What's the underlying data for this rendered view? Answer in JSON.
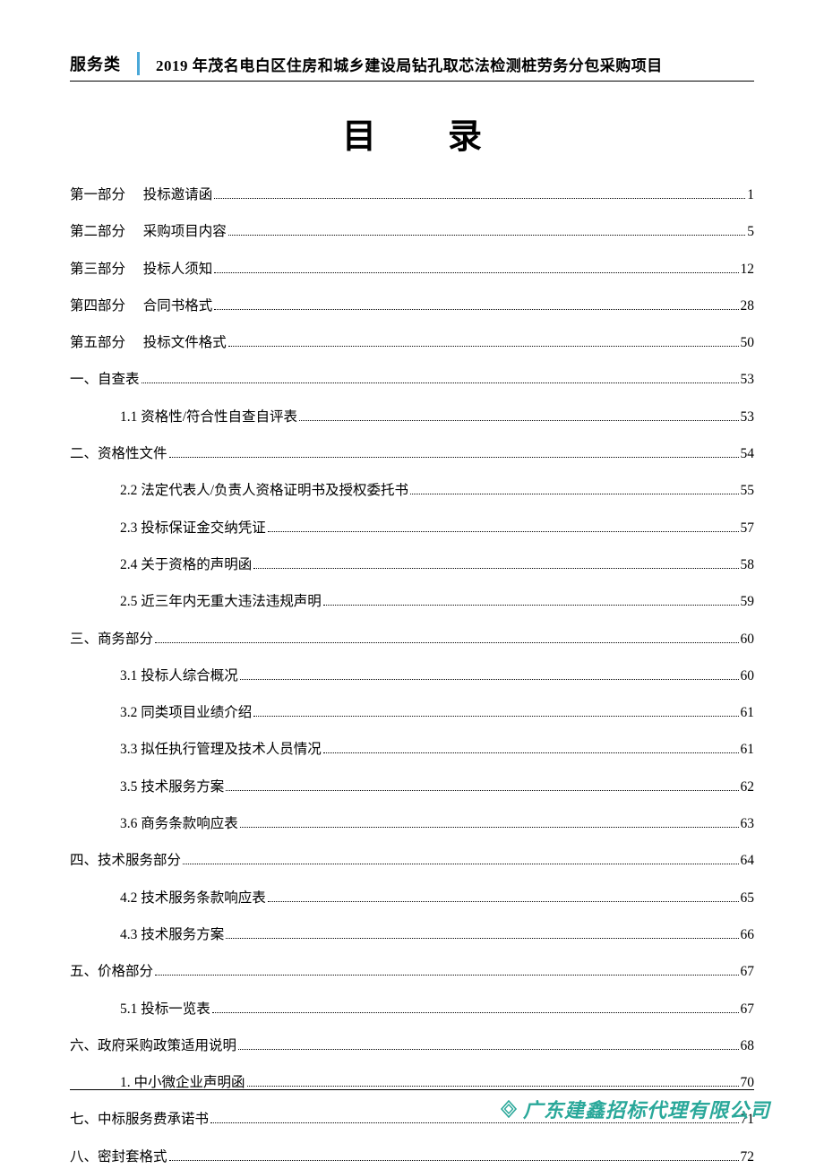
{
  "header": {
    "category": "服务类",
    "project_title": "2019 年茂名电白区住房和城乡建设局钻孔取芯法检测桩劳务分包采购项目"
  },
  "title": "目录",
  "toc": [
    {
      "level": 0,
      "part": "第一部分",
      "label": "投标邀请函",
      "page": "1"
    },
    {
      "level": 0,
      "part": "第二部分",
      "label": "采购项目内容",
      "page": "5"
    },
    {
      "level": 0,
      "part": "第三部分",
      "label": "投标人须知",
      "page": "12"
    },
    {
      "level": 0,
      "part": "第四部分",
      "label": "合同书格式",
      "page": "28"
    },
    {
      "level": 0,
      "part": "第五部分",
      "label": "投标文件格式",
      "page": "50"
    },
    {
      "level": 0,
      "part": "",
      "label": "一、自查表",
      "page": "53"
    },
    {
      "level": 1,
      "part": "",
      "label": "1.1 资格性/符合性自查自评表",
      "page": "53"
    },
    {
      "level": 0,
      "part": "",
      "label": "二、资格性文件",
      "page": "54"
    },
    {
      "level": 1,
      "part": "",
      "label": "2.2 法定代表人/负责人资格证明书及授权委托书",
      "page": "55"
    },
    {
      "level": 1,
      "part": "",
      "label": "2.3 投标保证金交纳凭证",
      "page": "57"
    },
    {
      "level": 1,
      "part": "",
      "label": "2.4 关于资格的声明函",
      "page": "58"
    },
    {
      "level": 1,
      "part": "",
      "label": "2.5 近三年内无重大违法违规声明",
      "page": "59"
    },
    {
      "level": 0,
      "part": "",
      "label": "三、商务部分",
      "page": "60"
    },
    {
      "level": 1,
      "part": "",
      "label": "3.1 投标人综合概况",
      "page": "60"
    },
    {
      "level": 1,
      "part": "",
      "label": "3.2 同类项目业绩介绍",
      "page": "61"
    },
    {
      "level": 1,
      "part": "",
      "label": "3.3 拟任执行管理及技术人员情况",
      "page": "61"
    },
    {
      "level": 1,
      "part": "",
      "label": "3.5 技术服务方案",
      "page": "62"
    },
    {
      "level": 1,
      "part": "",
      "label": "3.6 商务条款响应表",
      "page": "63"
    },
    {
      "level": 0,
      "part": "",
      "label": "四、技术服务部分",
      "page": "64"
    },
    {
      "level": 1,
      "part": "",
      "label": "4.2 技术服务条款响应表",
      "page": "65"
    },
    {
      "level": 1,
      "part": "",
      "label": "4.3 技术服务方案",
      "page": "66"
    },
    {
      "level": 0,
      "part": "",
      "label": "五、价格部分",
      "page": "67"
    },
    {
      "level": 1,
      "part": "",
      "label": "5.1 投标一览表",
      "page": "67"
    },
    {
      "level": 0,
      "part": "",
      "label": "六、政府采购政策适用说明",
      "page": "68"
    },
    {
      "level": 1,
      "part": "",
      "label": "1. 中小微企业声明函",
      "page": "70"
    },
    {
      "level": 0,
      "part": "",
      "label": "七、中标服务费承诺书",
      "page": "71"
    },
    {
      "level": 0,
      "part": "",
      "label": "八、密封套格式",
      "page": "72"
    }
  ],
  "footer": {
    "company": "广东建鑫招标代理有限公司",
    "brand_color": "#2aa89a"
  }
}
